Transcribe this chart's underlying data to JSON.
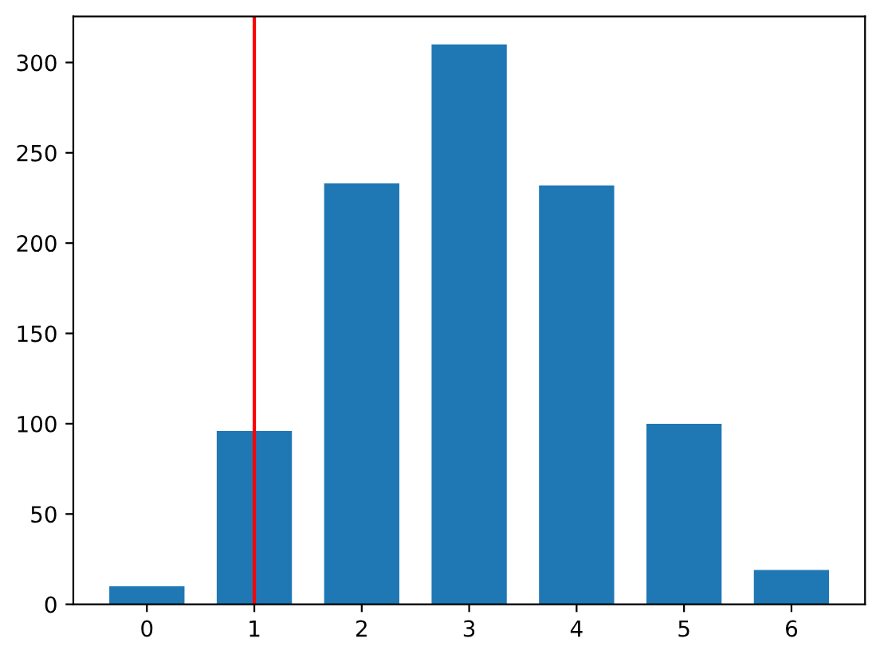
{
  "chart_data": {
    "type": "bar",
    "x": [
      0,
      1,
      2,
      3,
      4,
      5,
      6
    ],
    "values": [
      10,
      96,
      233,
      310,
      232,
      100,
      19
    ],
    "color": "#1f77b4",
    "xlim": [
      -0.685,
      6.685
    ],
    "xticks": [
      0,
      1,
      2,
      3,
      4,
      5,
      6
    ],
    "ylim": [
      0,
      325.5
    ],
    "yticks": [
      0,
      50,
      100,
      150,
      200,
      250,
      300
    ],
    "ref_lines": [
      {
        "axis": "x",
        "value": 1,
        "color": "#ff0000",
        "line_style": "solid"
      }
    ]
  }
}
